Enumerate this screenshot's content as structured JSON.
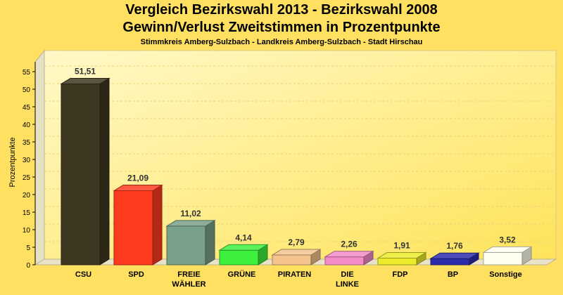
{
  "chart_data": {
    "type": "bar",
    "title": "Vergleich Bezirkswahl 2013 - Bezirkswahl 2008",
    "title2": "Gewinn/Verlust Zweitstimmen in Prozentpunkte",
    "subtitle": "Stimmkreis Amberg-Sulzbach - Landkreis Amberg-Sulzbach - Stadt Hirschau",
    "xlabel": "",
    "ylabel": "Prozentpunkte",
    "ylim": [
      0,
      55
    ],
    "yticks": [
      0,
      5,
      10,
      15,
      20,
      25,
      30,
      35,
      40,
      45,
      50,
      55
    ],
    "grid": true,
    "categories": [
      "CSU",
      "SPD",
      "FREIE WÄHLER",
      "GRÜNE",
      "PIRATEN",
      "DIE LINKE",
      "FDP",
      "BP",
      "Sonstige"
    ],
    "values": [
      51.51,
      21.09,
      11.02,
      4.14,
      2.79,
      2.26,
      1.91,
      1.76,
      3.52
    ],
    "value_labels": [
      "51,51",
      "21,09",
      "11,02",
      "4,14",
      "2,79",
      "2,26",
      "1,91",
      "1,76",
      "3,52"
    ],
    "colors": [
      "#3d3620",
      "#ff3b1f",
      "#7aa08a",
      "#3ef03e",
      "#f4c48c",
      "#f48cc8",
      "#ecec2c",
      "#2c2cac",
      "#fffff0"
    ]
  }
}
